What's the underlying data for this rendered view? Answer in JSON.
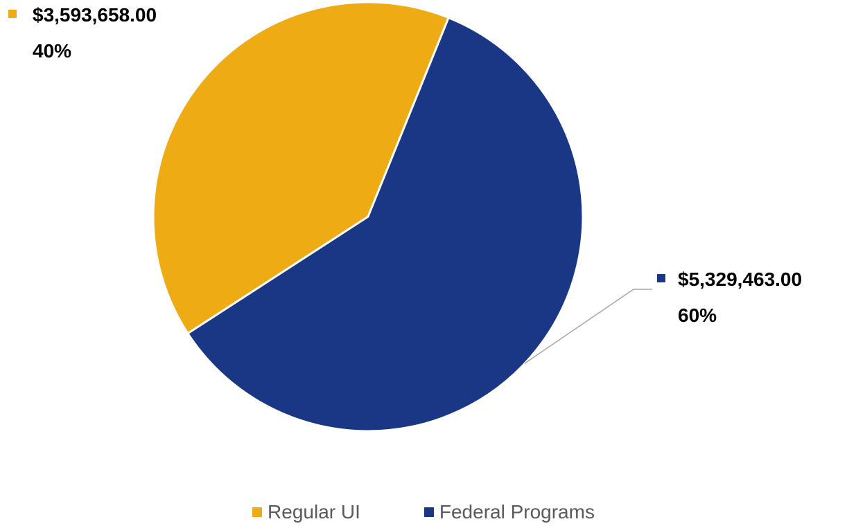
{
  "chart_data": {
    "type": "pie",
    "categories": [
      "Regular UI",
      "Federal Programs"
    ],
    "values": [
      3593658.0,
      5329463.0
    ],
    "value_labels": [
      "$3,593,658.00",
      "$5,329,463.00"
    ],
    "percent_labels": [
      "40%",
      "60%"
    ],
    "colors": [
      "#EFAB13",
      "#1A3786"
    ],
    "legend": {
      "position": "bottom",
      "entries": [
        "Regular UI",
        "Federal Programs"
      ]
    },
    "title": ""
  }
}
